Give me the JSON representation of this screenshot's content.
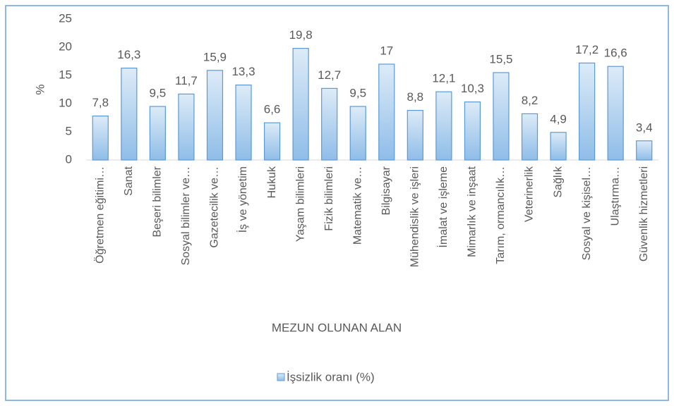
{
  "chart_data": {
    "type": "bar",
    "y_label": "%",
    "x_label": "MEZUN OLUNAN ALAN",
    "categories": [
      "Öğretmen eğitimi…",
      "Sanat",
      "Beşeri bilimler",
      "Sosyal bilimler ve…",
      "Gazetecilik ve…",
      "İş ve yönetim",
      "Hukuk",
      "Yaşam bilimleri",
      "Fizik bilimleri",
      "Matematik ve…",
      "Bilgisayar",
      "Mühendislik ve işleri",
      "İmalat ve işleme",
      "Mimarlık ve inşaat",
      "Tarım, ormancılık…",
      "Veterinerlik",
      "Sağlık",
      "Sosyal ve kişisel…",
      "Ulaştırma…",
      "Güvenlik hizmetleri"
    ],
    "series": [
      {
        "name": "İşsizlik oranı (%)",
        "color": "#5b9bd5",
        "values": [
          7.8,
          16.3,
          9.5,
          11.7,
          15.9,
          13.3,
          6.6,
          19.8,
          12.7,
          9.5,
          17,
          8.8,
          12.1,
          10.3,
          15.5,
          8.2,
          4.9,
          17.2,
          16.6,
          3.4
        ],
        "value_labels": [
          "7,8",
          "16,3",
          "9,5",
          "11,7",
          "15,9",
          "13,3",
          "6,6",
          "19,8",
          "12,7",
          "9,5",
          "17",
          "8,8",
          "12,1",
          "10,3",
          "15,5",
          "8,2",
          "4,9",
          "17,2",
          "16,6",
          "3,4"
        ]
      }
    ],
    "ylim": [
      0,
      25
    ],
    "yticks": [
      0,
      5,
      10,
      15,
      20,
      25
    ],
    "grid": false,
    "legend": "bottom"
  }
}
